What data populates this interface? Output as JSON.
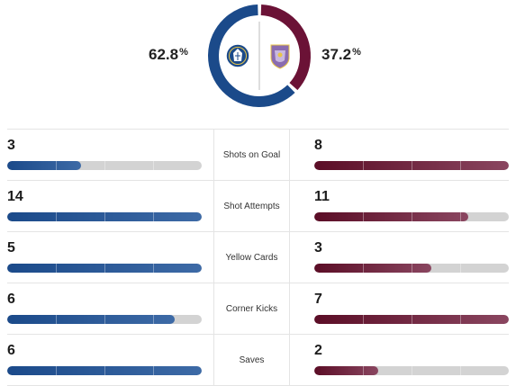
{
  "possession": {
    "home": {
      "value": "62.8",
      "unit": "%",
      "fraction": 0.628,
      "color": "#1b4a8a",
      "crest": "chelsea-crest-icon"
    },
    "away": {
      "value": "37.2",
      "unit": "%",
      "fraction": 0.372,
      "color": "#6b1236",
      "crest": "aston-villa-crest-icon"
    }
  },
  "stats": [
    {
      "label": "Shots on Goal",
      "home": "3",
      "away": "8",
      "home_fill": 0.38,
      "away_fill": 1.0
    },
    {
      "label": "Shot Attempts",
      "home": "14",
      "away": "11",
      "home_fill": 1.0,
      "away_fill": 0.79
    },
    {
      "label": "Yellow Cards",
      "home": "5",
      "away": "3",
      "home_fill": 1.0,
      "away_fill": 0.6
    },
    {
      "label": "Corner Kicks",
      "home": "6",
      "away": "7",
      "home_fill": 0.86,
      "away_fill": 1.0
    },
    {
      "label": "Saves",
      "home": "6",
      "away": "2",
      "home_fill": 1.0,
      "away_fill": 0.33
    }
  ],
  "colors": {
    "home_bar": "#1b4a8a",
    "away_bar": "#6b1236",
    "track": "#d3d3d3"
  }
}
